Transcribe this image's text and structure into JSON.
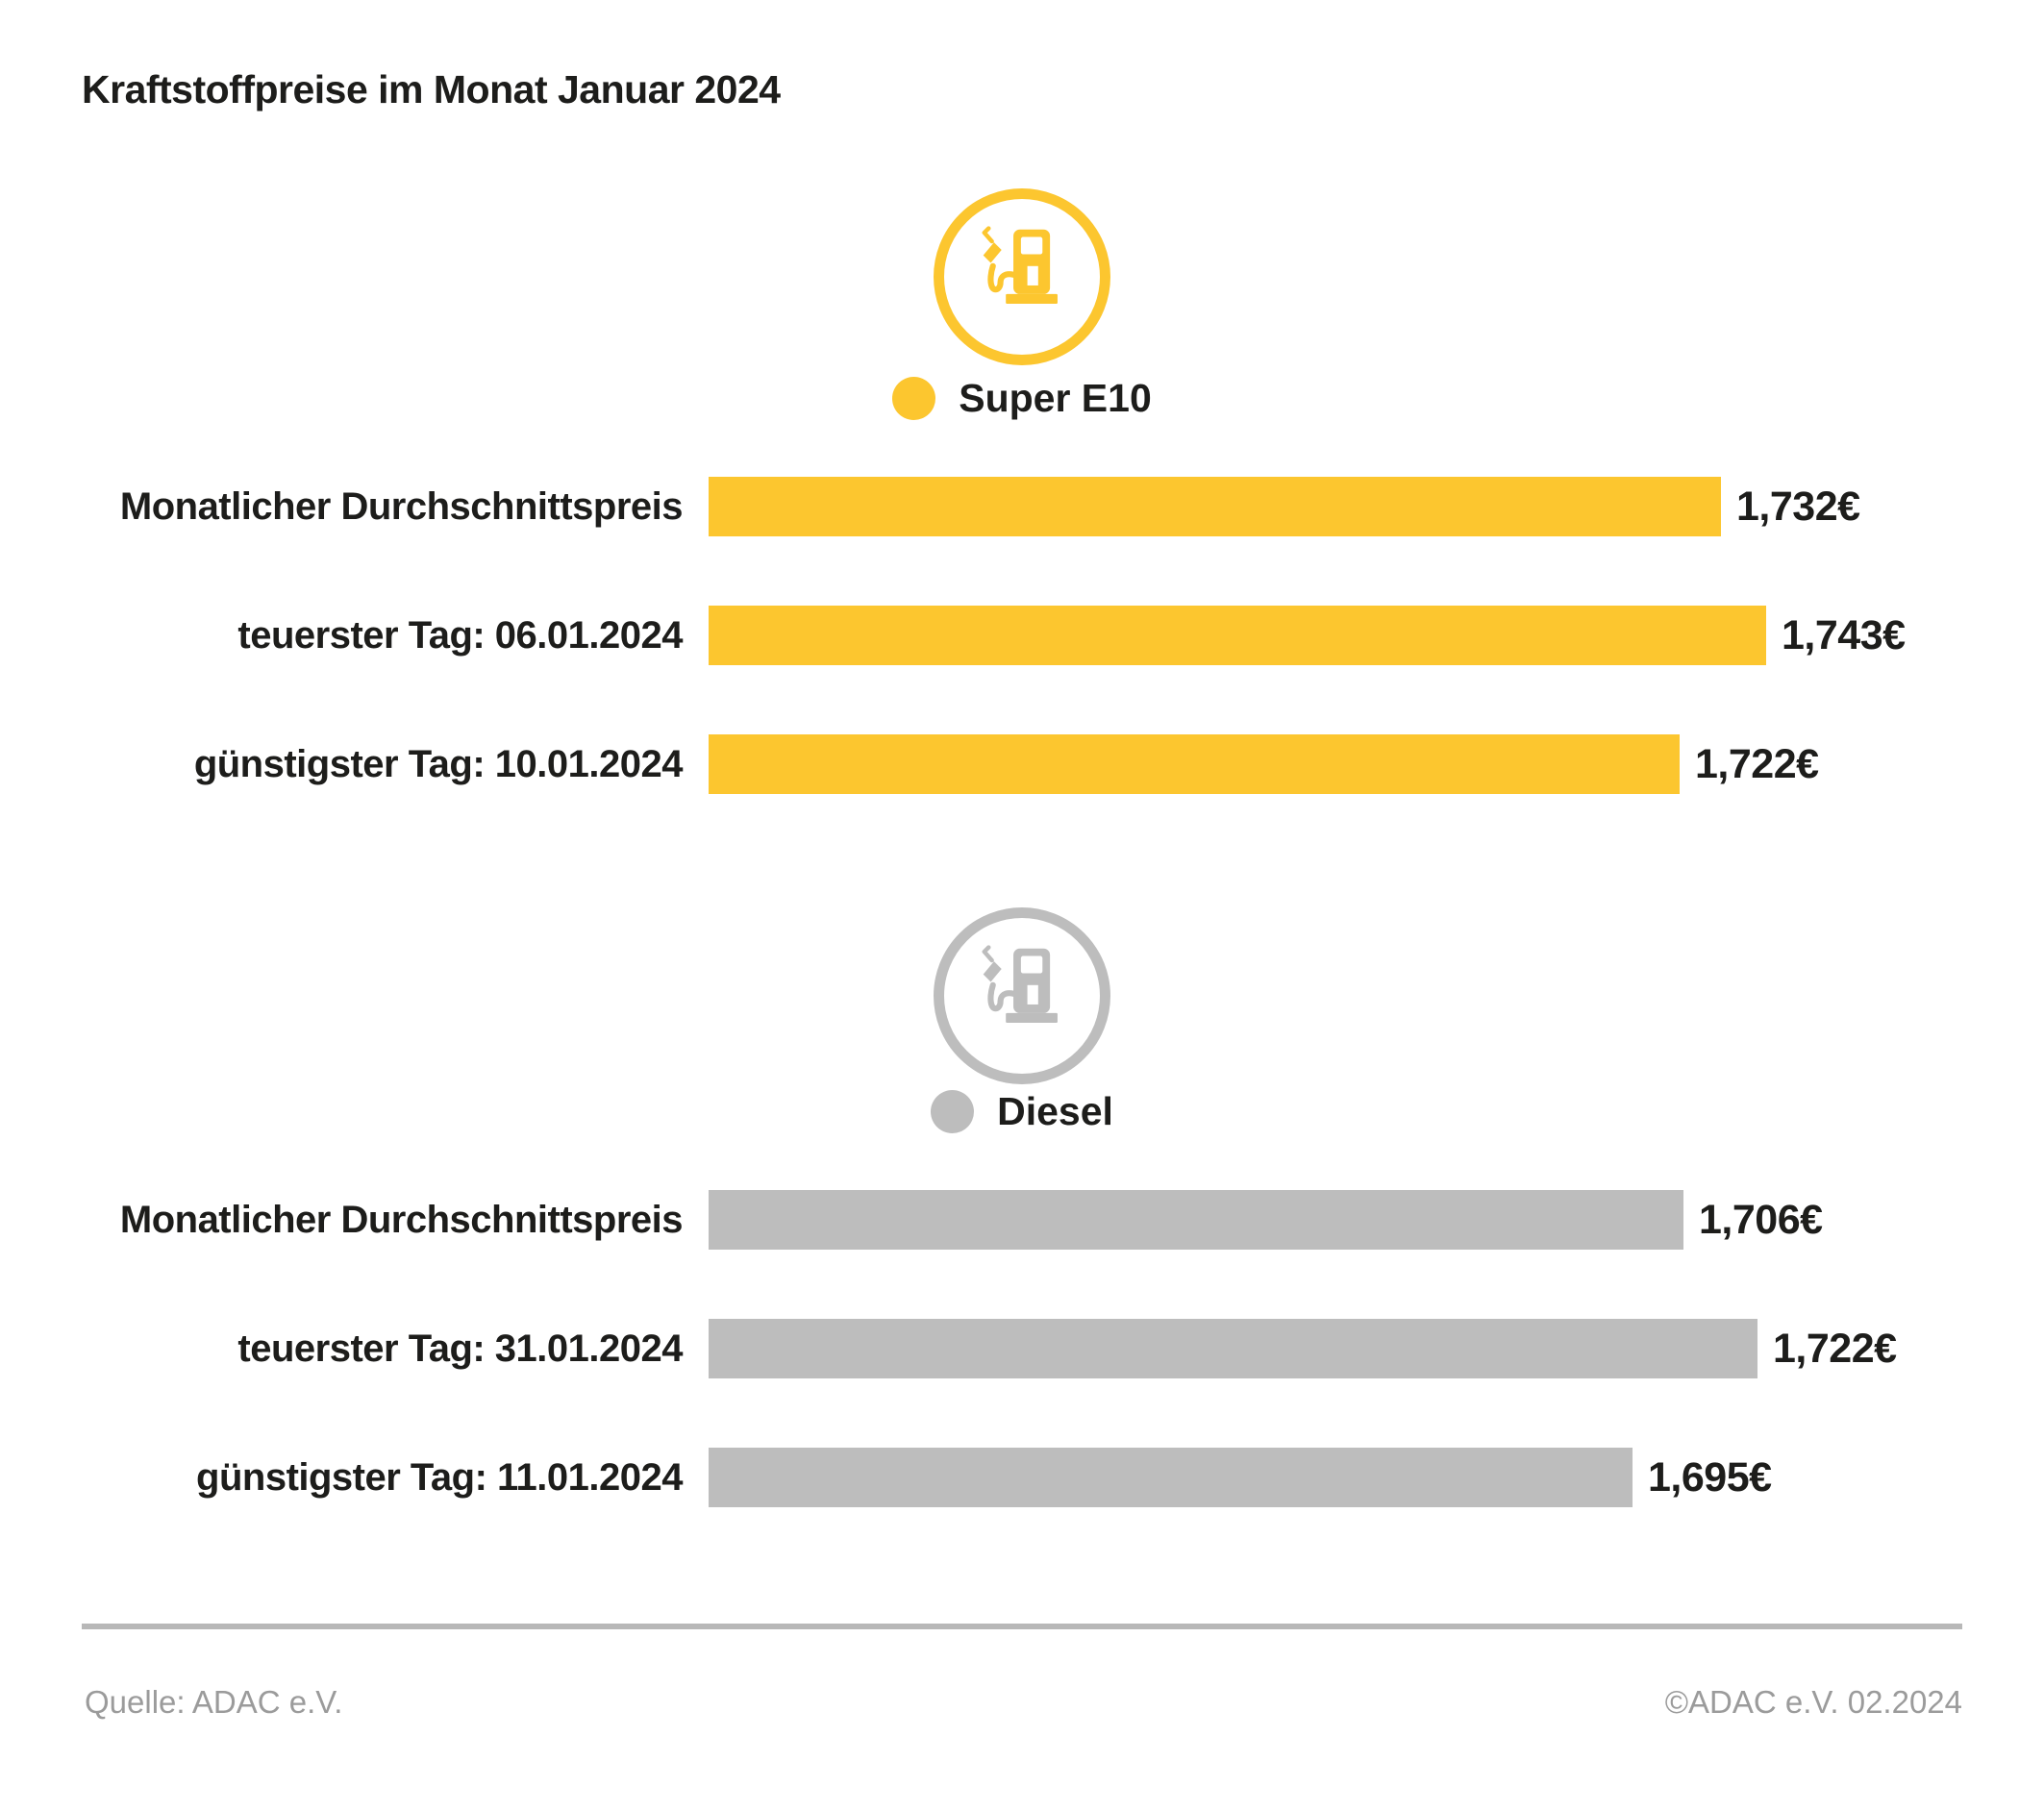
{
  "header": {
    "title": "Kraftstoffpreise im Monat Januar 2024"
  },
  "chart_data": {
    "type": "bar",
    "orientation": "horizontal",
    "title": "Kraftstoffpreise im Monat Januar 2024",
    "value_unit": "€",
    "groups": [
      {
        "name": "Super E10",
        "color": "#FCC62F",
        "icon": "fuel-pump-icon",
        "xlim": [
          1.487,
          1.75
        ],
        "rows": [
          {
            "label": "Monatlicher Durchschnittspreis",
            "value": 1.732,
            "value_label": "1,732€"
          },
          {
            "label": "teuerster Tag: 06.01.2024",
            "value": 1.743,
            "value_label": "1,743€"
          },
          {
            "label": "günstigster Tag: 10.01.2024",
            "value": 1.722,
            "value_label": "1,722€"
          }
        ]
      },
      {
        "name": "Diesel",
        "color": "#BDBDBD",
        "icon": "fuel-pump-icon",
        "xlim": [
          1.496,
          1.73
        ],
        "rows": [
          {
            "label": "Monatlicher Durchschnittspreis",
            "value": 1.706,
            "value_label": "1,706€"
          },
          {
            "label": "teuerster Tag: 31.01.2024",
            "value": 1.722,
            "value_label": "1,722€"
          },
          {
            "label": "günstigster Tag: 11.01.2024",
            "value": 1.695,
            "value_label": "1,695€"
          }
        ]
      }
    ]
  },
  "footer": {
    "source": "Quelle: ADAC e.V.",
    "copyright": "©ADAC e.V. 02.2024"
  }
}
